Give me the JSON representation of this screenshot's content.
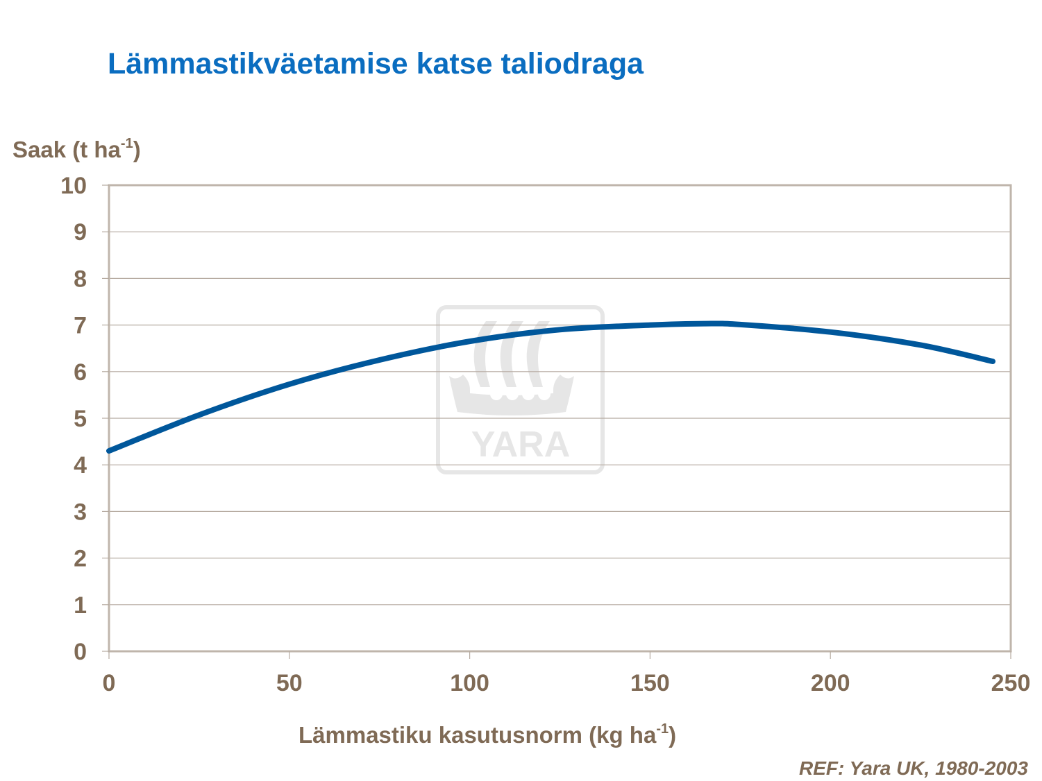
{
  "header": {
    "title": "Lämmastikväetamise katse taliodraga"
  },
  "axes": {
    "y_label_main": "Saak (t ha",
    "y_label_sup": "-1",
    "y_label_end": ")",
    "x_label_main": "Lämmastiku kasutusnorm (kg ha",
    "x_label_sup": "-1",
    "x_label_end": ")"
  },
  "footer": {
    "reference": "REF: Yara UK, 1980-2003"
  },
  "watermark": {
    "text": "YARA",
    "icon": "yara-viking-ship-logo"
  },
  "colors": {
    "title": "#0a6dc0",
    "axis_text": "#7f6a55",
    "curve": "#00579b",
    "grid": "#b5aaa0",
    "frame": "#bfb5ab",
    "watermark": "#e6e6e6"
  },
  "chart_data": {
    "type": "line",
    "title": "Lämmastikväetamise katse taliodraga",
    "xlabel": "Lämmastiku kasutusnorm (kg ha-1)",
    "ylabel": "Saak (t ha-1)",
    "xlim": [
      0,
      250
    ],
    "ylim": [
      0,
      10
    ],
    "x_ticks": [
      0,
      50,
      100,
      150,
      200,
      250
    ],
    "y_ticks": [
      0,
      1,
      2,
      3,
      4,
      5,
      6,
      7,
      8,
      9,
      10
    ],
    "grid": "horizontal",
    "legend": null,
    "annotations": [
      "REF: Yara UK, 1980-2003"
    ],
    "series": [
      {
        "name": "Saak",
        "x": [
          0,
          25,
          50,
          75,
          100,
          125,
          150,
          165,
          175,
          200,
          225,
          245
        ],
        "values": [
          4.3,
          5.07,
          5.73,
          6.25,
          6.65,
          6.9,
          7.0,
          7.03,
          7.01,
          6.85,
          6.57,
          6.22
        ]
      }
    ]
  }
}
